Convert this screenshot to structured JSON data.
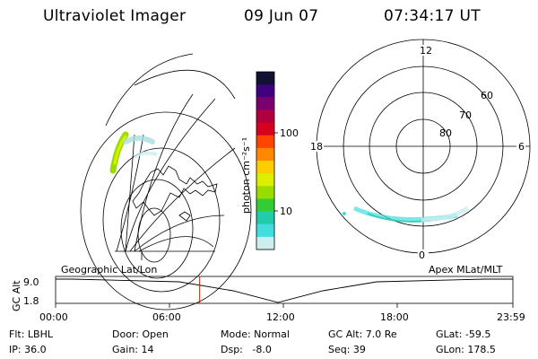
{
  "header": {
    "title": "Ultraviolet Imager",
    "date": "09 Jun 07",
    "time": "07:34:17 UT"
  },
  "colorbar": {
    "label": "photon cm⁻²s⁻¹",
    "ticks": [
      "100",
      "10"
    ],
    "colors": [
      "#111133",
      "#400080",
      "#7a0070",
      "#b00040",
      "#d80020",
      "#ff4400",
      "#ff8800",
      "#ffcc00",
      "#ddee00",
      "#99dd00",
      "#33cc33",
      "#22ccaa",
      "#44dddd",
      "#cceeee"
    ]
  },
  "polar": {
    "mlt_labels": [
      "12",
      "18",
      "6",
      "0"
    ],
    "lat_labels": [
      "60",
      "70",
      "80"
    ]
  },
  "orbit": {
    "left_label": "Geographic Lat/Lon",
    "right_label": "Apex MLat/MLT",
    "axis_label": "GC Alt",
    "y_ticks": [
      "9.0",
      "1.8"
    ],
    "x_ticks": [
      "00:00",
      "06:00",
      "12:00",
      "18:00",
      "23:59"
    ],
    "current_time_fraction": 0.315
  },
  "info": {
    "row1": [
      "Flt: LBHL",
      "Door: Open",
      "Mode: Normal",
      "GC Alt: 7.0 Re",
      "GLat: -59.5"
    ],
    "row2": [
      "IP: 36.0",
      "Gain: 14",
      "Dsp:   -8.0",
      "Seq: 39",
      "GLon: 178.5"
    ]
  }
}
